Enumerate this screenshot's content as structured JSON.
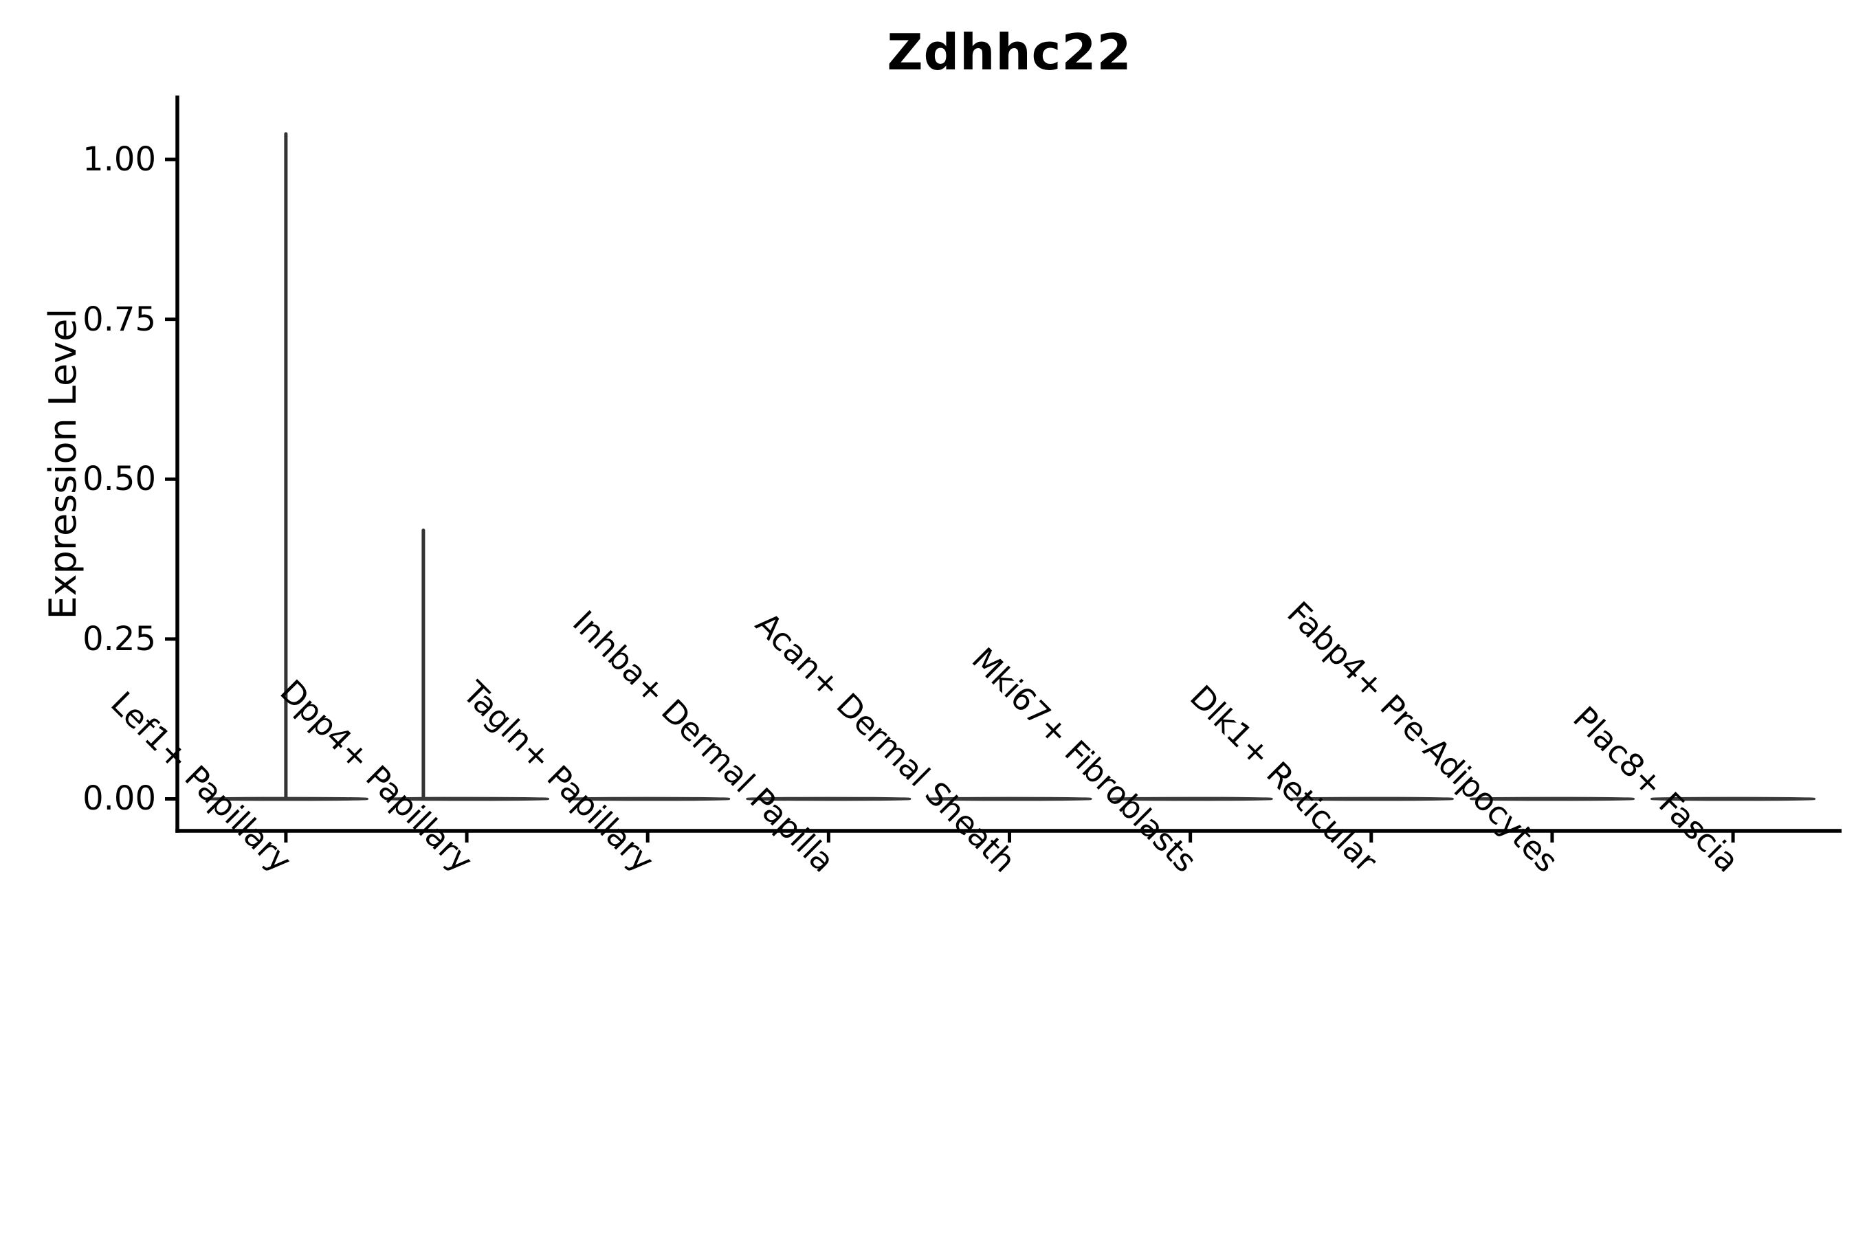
{
  "title": "Zdhhc22",
  "axes": {
    "ylabel": "Expression Level",
    "xlabel": "",
    "y_tick_labels": [
      "0.00",
      "0.25",
      "0.50",
      "0.75",
      "1.00"
    ]
  },
  "chart_data": {
    "type": "violin",
    "title": "Zdhhc22",
    "xlabel": "",
    "ylabel": "Expression Level",
    "categories": [
      "Lef1+ Papillary",
      "Dpp4+ Papillary",
      "Tagln+ Papillary",
      "Inhba+ Dermal Papilla",
      "Acan+ Dermal Sheath",
      "Mki67+ Fibroblasts",
      "Dlk1+ Reticular",
      "Fabp4+ Pre-Adipocytes",
      "Plac8+ Fascia"
    ],
    "y_ticks": [
      0,
      0.25,
      0.5,
      0.75,
      1.0
    ],
    "y_tick_labels": [
      "0.00",
      "0.25",
      "0.50",
      "0.75",
      "1.00"
    ],
    "ylim": [
      -0.05,
      1.1
    ],
    "grid": false,
    "legend": "none",
    "violins": [
      {
        "category": "Lef1+ Papillary",
        "body_value": 0,
        "body_width_frac": 0.9,
        "max": 1.04,
        "spike": true,
        "spike_x_offset_frac": 0
      },
      {
        "category": "Dpp4+ Papillary",
        "body_value": 0,
        "body_width_frac": 0.9,
        "max": 0.42,
        "spike": true,
        "spike_x_offset_frac": -0.24
      },
      {
        "category": "Tagln+ Papillary",
        "body_value": 0,
        "body_width_frac": 0.9,
        "max": 0,
        "spike": false,
        "spike_x_offset_frac": 0
      },
      {
        "category": "Inhba+ Dermal Papilla",
        "body_value": 0,
        "body_width_frac": 0.9,
        "max": 0,
        "spike": false,
        "spike_x_offset_frac": 0
      },
      {
        "category": "Acan+ Dermal Sheath",
        "body_value": 0,
        "body_width_frac": 0.9,
        "max": 0,
        "spike": false,
        "spike_x_offset_frac": 0
      },
      {
        "category": "Mki67+ Fibroblasts",
        "body_value": 0,
        "body_width_frac": 0.9,
        "max": 0,
        "spike": false,
        "spike_x_offset_frac": 0
      },
      {
        "category": "Dlk1+ Reticular",
        "body_value": 0,
        "body_width_frac": 0.9,
        "max": 0,
        "spike": false,
        "spike_x_offset_frac": 0
      },
      {
        "category": "Fabp4+ Pre-Adipocytes",
        "body_value": 0,
        "body_width_frac": 0.9,
        "max": 0,
        "spike": false,
        "spike_x_offset_frac": 0
      },
      {
        "category": "Plac8+ Fascia",
        "body_value": 0,
        "body_width_frac": 0.9,
        "max": 0,
        "spike": false,
        "spike_x_offset_frac": 0
      }
    ],
    "colors": {
      "violin_stroke": "#333333",
      "violin_body": "#3a3a3a",
      "axis": "#000000",
      "text": "#000000",
      "background": "#ffffff"
    }
  }
}
